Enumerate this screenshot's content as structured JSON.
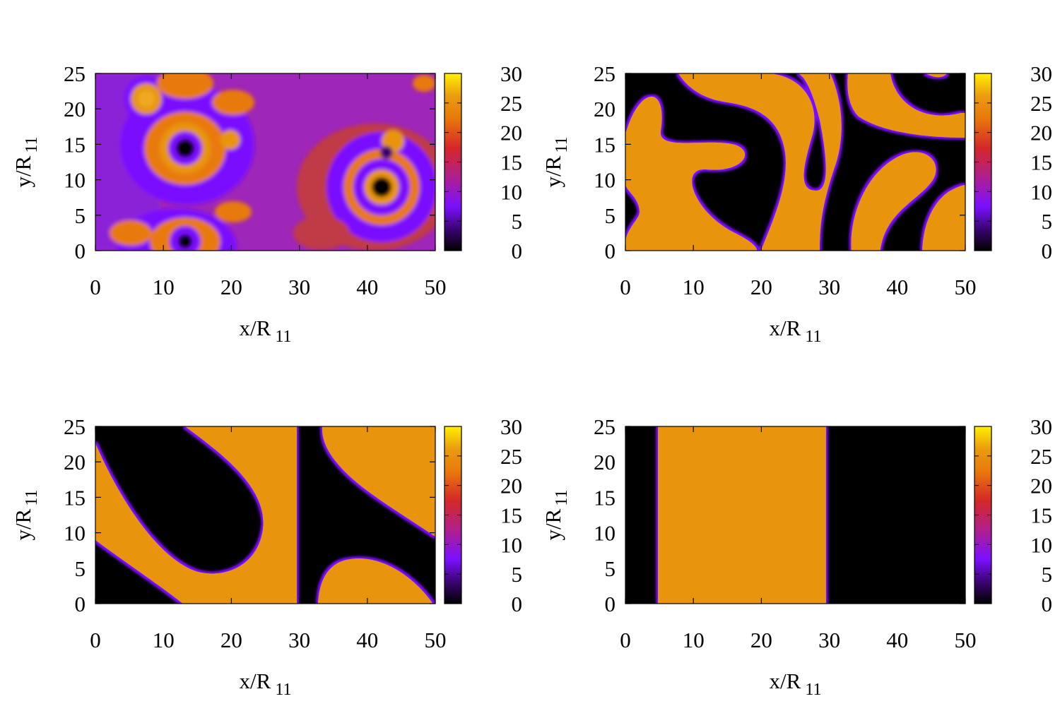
{
  "chart_data": [
    {
      "type": "heatmap",
      "xlabel_main": "x/R",
      "xlabel_sub": "11",
      "ylabel_main": "y/R",
      "ylabel_sub": "11",
      "xlim": [
        0,
        50
      ],
      "ylim": [
        0,
        25
      ],
      "xticks": [
        "0",
        "10",
        "20",
        "30",
        "40",
        "50"
      ],
      "yticks": [
        "0",
        "5",
        "10",
        "15",
        "20",
        "25"
      ],
      "colorbar": {
        "range": [
          0,
          30
        ],
        "ticks": [
          "0",
          "5",
          "10",
          "15",
          "20",
          "25",
          "30"
        ]
      },
      "pattern": "transient rings (early time)"
    },
    {
      "type": "heatmap",
      "xlabel_main": "x/R",
      "xlabel_sub": "11",
      "ylabel_main": "y/R",
      "ylabel_sub": "11",
      "xlim": [
        0,
        50
      ],
      "ylim": [
        0,
        25
      ],
      "xticks": [
        "0",
        "10",
        "20",
        "30",
        "40",
        "50"
      ],
      "yticks": [
        "0",
        "5",
        "10",
        "15",
        "20",
        "25"
      ],
      "colorbar": {
        "range": [
          0,
          30
        ],
        "ticks": [
          "0",
          "5",
          "10",
          "15",
          "20",
          "25",
          "30"
        ]
      },
      "pattern": "labyrinthine domains"
    },
    {
      "type": "heatmap",
      "xlabel_main": "x/R",
      "xlabel_sub": "11",
      "ylabel_main": "y/R",
      "ylabel_sub": "11",
      "xlim": [
        0,
        50
      ],
      "ylim": [
        0,
        25
      ],
      "xticks": [
        "0",
        "10",
        "20",
        "30",
        "40",
        "50"
      ],
      "yticks": [
        "0",
        "5",
        "10",
        "15",
        "20",
        "25"
      ],
      "colorbar": {
        "range": [
          0,
          30
        ],
        "ticks": [
          "0",
          "5",
          "10",
          "15",
          "20",
          "25",
          "30"
        ]
      },
      "pattern": "coarsened bands"
    },
    {
      "type": "heatmap",
      "xlabel_main": "x/R",
      "xlabel_sub": "11",
      "ylabel_main": "y/R",
      "ylabel_sub": "11",
      "xlim": [
        0,
        50
      ],
      "ylim": [
        0,
        25
      ],
      "xticks": [
        "0",
        "10",
        "20",
        "30",
        "40",
        "50"
      ],
      "yticks": [
        "0",
        "5",
        "10",
        "15",
        "20",
        "25"
      ],
      "colorbar": {
        "range": [
          0,
          30
        ],
        "ticks": [
          "0",
          "5",
          "10",
          "15",
          "20",
          "25",
          "30"
        ]
      },
      "pattern": "single stripe domain, x from 4.8 to 29.5",
      "stripe": {
        "x0": 4.8,
        "x1": 29.5,
        "value": 25
      }
    }
  ],
  "colors": {
    "palette": [
      "#000000",
      "#3a0470",
      "#7a10ff",
      "#b0208a",
      "#d42828",
      "#e87a0a",
      "#ea9a10",
      "#fff000"
    ],
    "domain_fill": "#e8950f",
    "background_fill": "#000000"
  }
}
